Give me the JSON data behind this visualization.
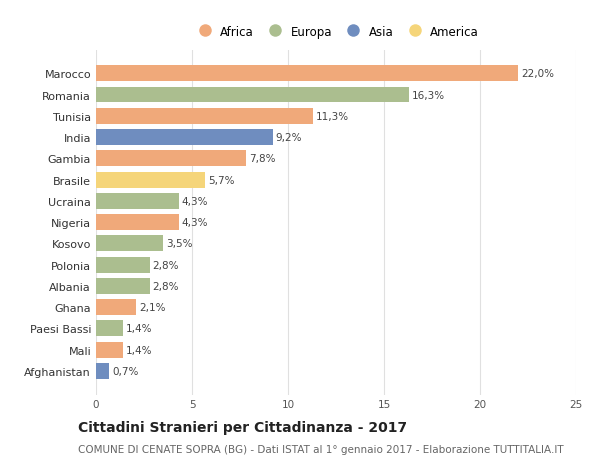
{
  "categories": [
    "Marocco",
    "Romania",
    "Tunisia",
    "India",
    "Gambia",
    "Brasile",
    "Ucraina",
    "Nigeria",
    "Kosovo",
    "Polonia",
    "Albania",
    "Ghana",
    "Paesi Bassi",
    "Mali",
    "Afghanistan"
  ],
  "values": [
    22.0,
    16.3,
    11.3,
    9.2,
    7.8,
    5.7,
    4.3,
    4.3,
    3.5,
    2.8,
    2.8,
    2.1,
    1.4,
    1.4,
    0.7
  ],
  "continents": [
    "Africa",
    "Europa",
    "Africa",
    "Asia",
    "Africa",
    "America",
    "Europa",
    "Africa",
    "Europa",
    "Europa",
    "Europa",
    "Africa",
    "Europa",
    "Africa",
    "Asia"
  ],
  "continent_colors": {
    "Africa": "#F0A97A",
    "Europa": "#ABBE8F",
    "Asia": "#6F8DBF",
    "America": "#F5D57A"
  },
  "legend_order": [
    "Africa",
    "Europa",
    "Asia",
    "America"
  ],
  "xlim": [
    0,
    25
  ],
  "xticks": [
    0,
    5,
    10,
    15,
    20,
    25
  ],
  "title": "Cittadini Stranieri per Cittadinanza - 2017",
  "subtitle": "COMUNE DI CENATE SOPRA (BG) - Dati ISTAT al 1° gennaio 2017 - Elaborazione TUTTITALIA.IT",
  "title_fontsize": 10,
  "subtitle_fontsize": 7.5,
  "background_color": "#ffffff",
  "grid_color": "#e0e0e0",
  "bar_height": 0.75
}
